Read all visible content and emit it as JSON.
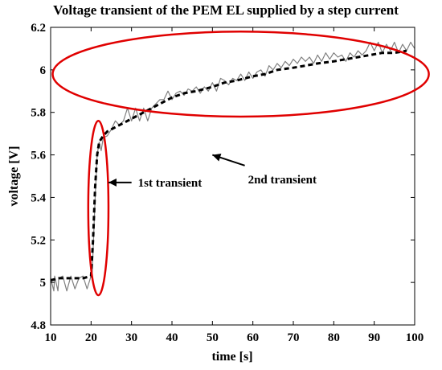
{
  "chart_data": {
    "type": "line",
    "title": "Voltage transient of the PEM EL supplied by a step current",
    "xlabel": "time [s]",
    "ylabel": "voltage [V]",
    "xlim": [
      10,
      100
    ],
    "ylim": [
      4.8,
      6.2
    ],
    "xticks": [
      10,
      20,
      30,
      40,
      50,
      60,
      70,
      80,
      90,
      100
    ],
    "yticks": [
      4.8,
      5.0,
      5.2,
      5.4,
      5.6,
      5.8,
      6.0,
      6.2
    ],
    "xtick_labels": [
      "10",
      "20",
      "30",
      "40",
      "50",
      "60",
      "70",
      "80",
      "90",
      "100"
    ],
    "ytick_labels": [
      "4.8",
      "5",
      "5.2",
      "5.4",
      "5.6",
      "5.8",
      "6",
      "6.2"
    ],
    "grid": false,
    "series": [
      {
        "name": "",
        "style": "solid",
        "color": "#808080",
        "x": [
          10,
          10.8,
          11,
          11.8,
          12,
          13,
          14,
          15,
          16,
          17,
          18,
          19,
          20,
          20.3,
          21,
          21.5,
          22,
          22.5,
          23,
          24,
          25,
          26,
          27,
          28,
          29,
          30,
          31,
          32,
          33,
          34,
          35,
          36,
          37,
          38,
          39,
          40,
          41,
          42,
          43,
          44,
          45,
          46,
          47,
          48,
          49,
          50,
          51,
          52,
          53,
          54,
          55,
          56,
          57,
          58,
          59,
          60,
          61,
          62,
          63,
          64,
          65,
          66,
          67,
          68,
          69,
          70,
          71,
          72,
          73,
          74,
          75,
          76,
          77,
          78,
          79,
          80,
          81,
          82,
          83,
          84,
          85,
          86,
          87,
          88,
          89,
          90,
          91,
          92,
          93,
          94,
          95,
          96,
          97,
          98,
          99,
          100
        ],
        "y": [
          5.02,
          4.96,
          5.03,
          4.96,
          5.02,
          5.03,
          4.96,
          5.03,
          4.97,
          5.02,
          5.03,
          4.97,
          5.03,
          5.05,
          5.4,
          5.6,
          5.66,
          5.62,
          5.68,
          5.69,
          5.72,
          5.76,
          5.74,
          5.76,
          5.82,
          5.76,
          5.82,
          5.76,
          5.82,
          5.76,
          5.82,
          5.84,
          5.86,
          5.86,
          5.9,
          5.86,
          5.89,
          5.9,
          5.88,
          5.91,
          5.9,
          5.92,
          5.89,
          5.92,
          5.9,
          5.94,
          5.9,
          5.96,
          5.95,
          5.93,
          5.96,
          5.95,
          5.98,
          5.95,
          5.99,
          5.96,
          5.99,
          6.0,
          5.97,
          6.02,
          6.0,
          6.03,
          6.01,
          6.04,
          6.02,
          6.05,
          6.03,
          6.06,
          6.04,
          6.06,
          6.03,
          6.07,
          6.04,
          6.08,
          6.05,
          6.08,
          6.06,
          6.07,
          6.04,
          6.08,
          6.06,
          6.09,
          6.07,
          6.09,
          6.13,
          6.09,
          6.13,
          6.08,
          6.12,
          6.09,
          6.13,
          6.08,
          6.12,
          6.09,
          6.13,
          6.1
        ]
      },
      {
        "name": "",
        "style": "dashed",
        "color": "#000000",
        "x": [
          10,
          12,
          14,
          16,
          18,
          20,
          20.5,
          21,
          21.5,
          22,
          23,
          24,
          26,
          28,
          30,
          32,
          35,
          38,
          40,
          43,
          46,
          50,
          53,
          56,
          60,
          63,
          66,
          70,
          73,
          76,
          80,
          83,
          86,
          89,
          92,
          95,
          98
        ],
        "y": [
          5.01,
          5.02,
          5.02,
          5.02,
          5.02,
          5.03,
          5.2,
          5.45,
          5.6,
          5.66,
          5.69,
          5.71,
          5.73,
          5.75,
          5.77,
          5.79,
          5.82,
          5.85,
          5.87,
          5.89,
          5.9,
          5.92,
          5.94,
          5.95,
          5.97,
          5.98,
          6.0,
          6.01,
          6.02,
          6.03,
          6.04,
          6.05,
          6.06,
          6.07,
          6.08,
          6.08,
          6.09
        ]
      }
    ],
    "annotations": [
      {
        "text": "1st transient",
        "x": 23.5,
        "y": 5.47,
        "arrow_from": [
          30,
          5.47
        ],
        "arrow_to": [
          24.3,
          5.47
        ]
      },
      {
        "text": "2nd transient",
        "x": 61,
        "y": 5.55,
        "arrow_from": [
          58,
          5.55
        ],
        "arrow_to": [
          50,
          5.6
        ]
      }
    ],
    "ellipses": [
      {
        "cx": 21.8,
        "cy": 5.35,
        "rx": 2.5,
        "ry": 0.41,
        "color": "#e00000"
      },
      {
        "cx": 57,
        "cy": 5.98,
        "rx": 46.5,
        "ry": 0.2,
        "color": "#e00000"
      }
    ]
  }
}
